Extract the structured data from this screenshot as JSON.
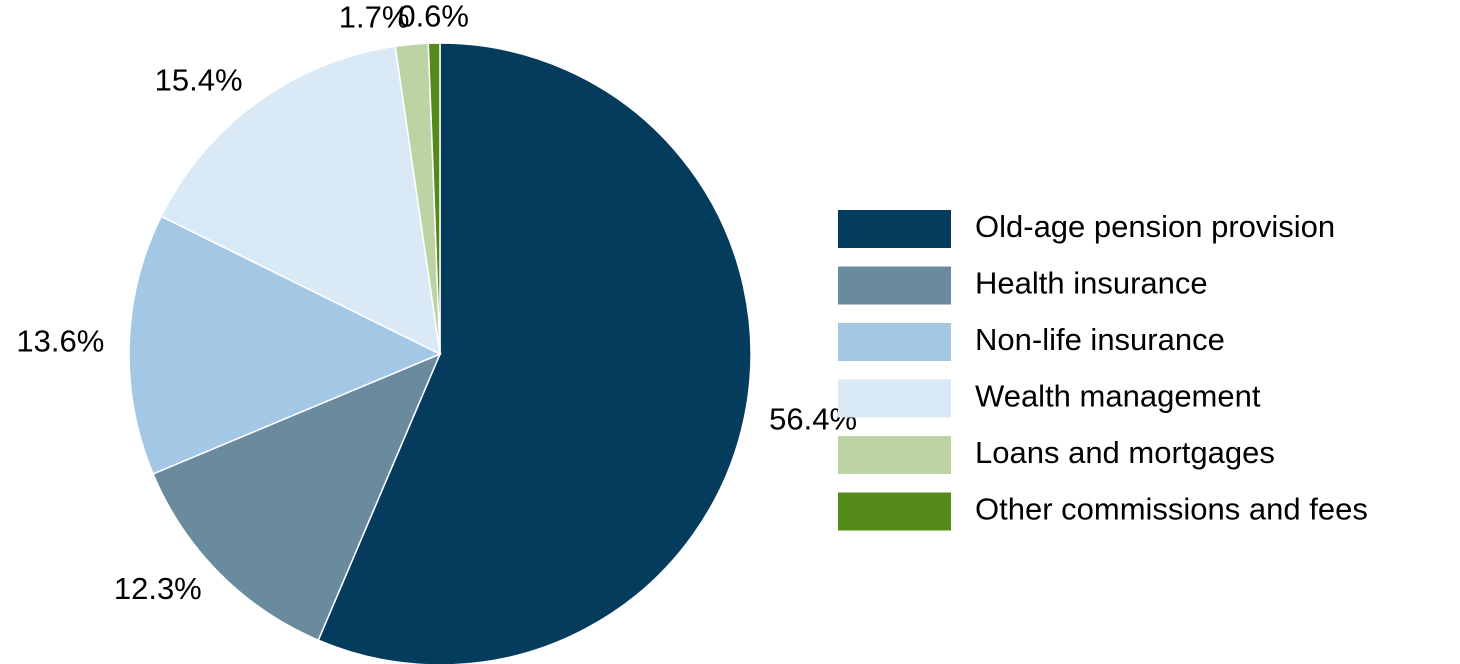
{
  "chart_data": {
    "type": "pie",
    "categories": [
      "Old-age pension provision",
      "Health insurance",
      "Non-life insurance",
      "Wealth management",
      "Loans and mortgages",
      "Other commissions and fees"
    ],
    "values": [
      56.4,
      12.3,
      13.6,
      15.4,
      1.7,
      0.6
    ],
    "value_labels": [
      "56.4%",
      "12.3%",
      "13.6%",
      "15.4%",
      "1.7%",
      "0.6%"
    ],
    "colors": [
      "#053c5e",
      "#6a8a9e",
      "#a3c8e6",
      "#d9e9f5",
      "#bcd3a4",
      "#538a1a"
    ],
    "legend": "right"
  }
}
